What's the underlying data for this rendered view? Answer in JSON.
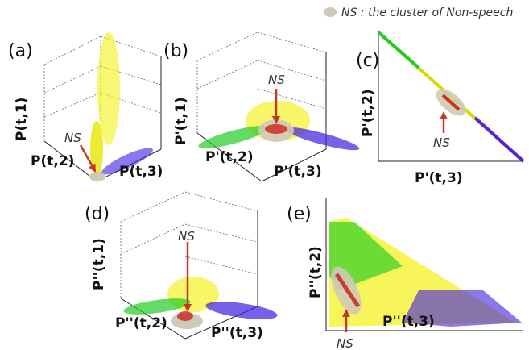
{
  "legend": "NS : the cluster of Non-speech",
  "panels": [
    {
      "label": "(a)",
      "axes": [
        "P(t,1)",
        "P(t,2)",
        "P(t,3)"
      ],
      "note": "NS"
    },
    {
      "label": "(b)",
      "axes": [
        "P'(t,1)",
        "P'(t,2)",
        "P'(t,3)"
      ],
      "note": "NS"
    },
    {
      "label": "(c)",
      "axes": [
        "P'(t,2)",
        "P'(t,3)"
      ],
      "note": "NS"
    },
    {
      "label": "(d)",
      "axes": [
        "P''(t,1)",
        "P''(t,2)",
        "P''(t,3)"
      ],
      "note": "NS"
    },
    {
      "label": "(e)",
      "axes": [
        "P''(t,2)",
        "P''(t,3)"
      ],
      "note": "NS"
    }
  ]
}
